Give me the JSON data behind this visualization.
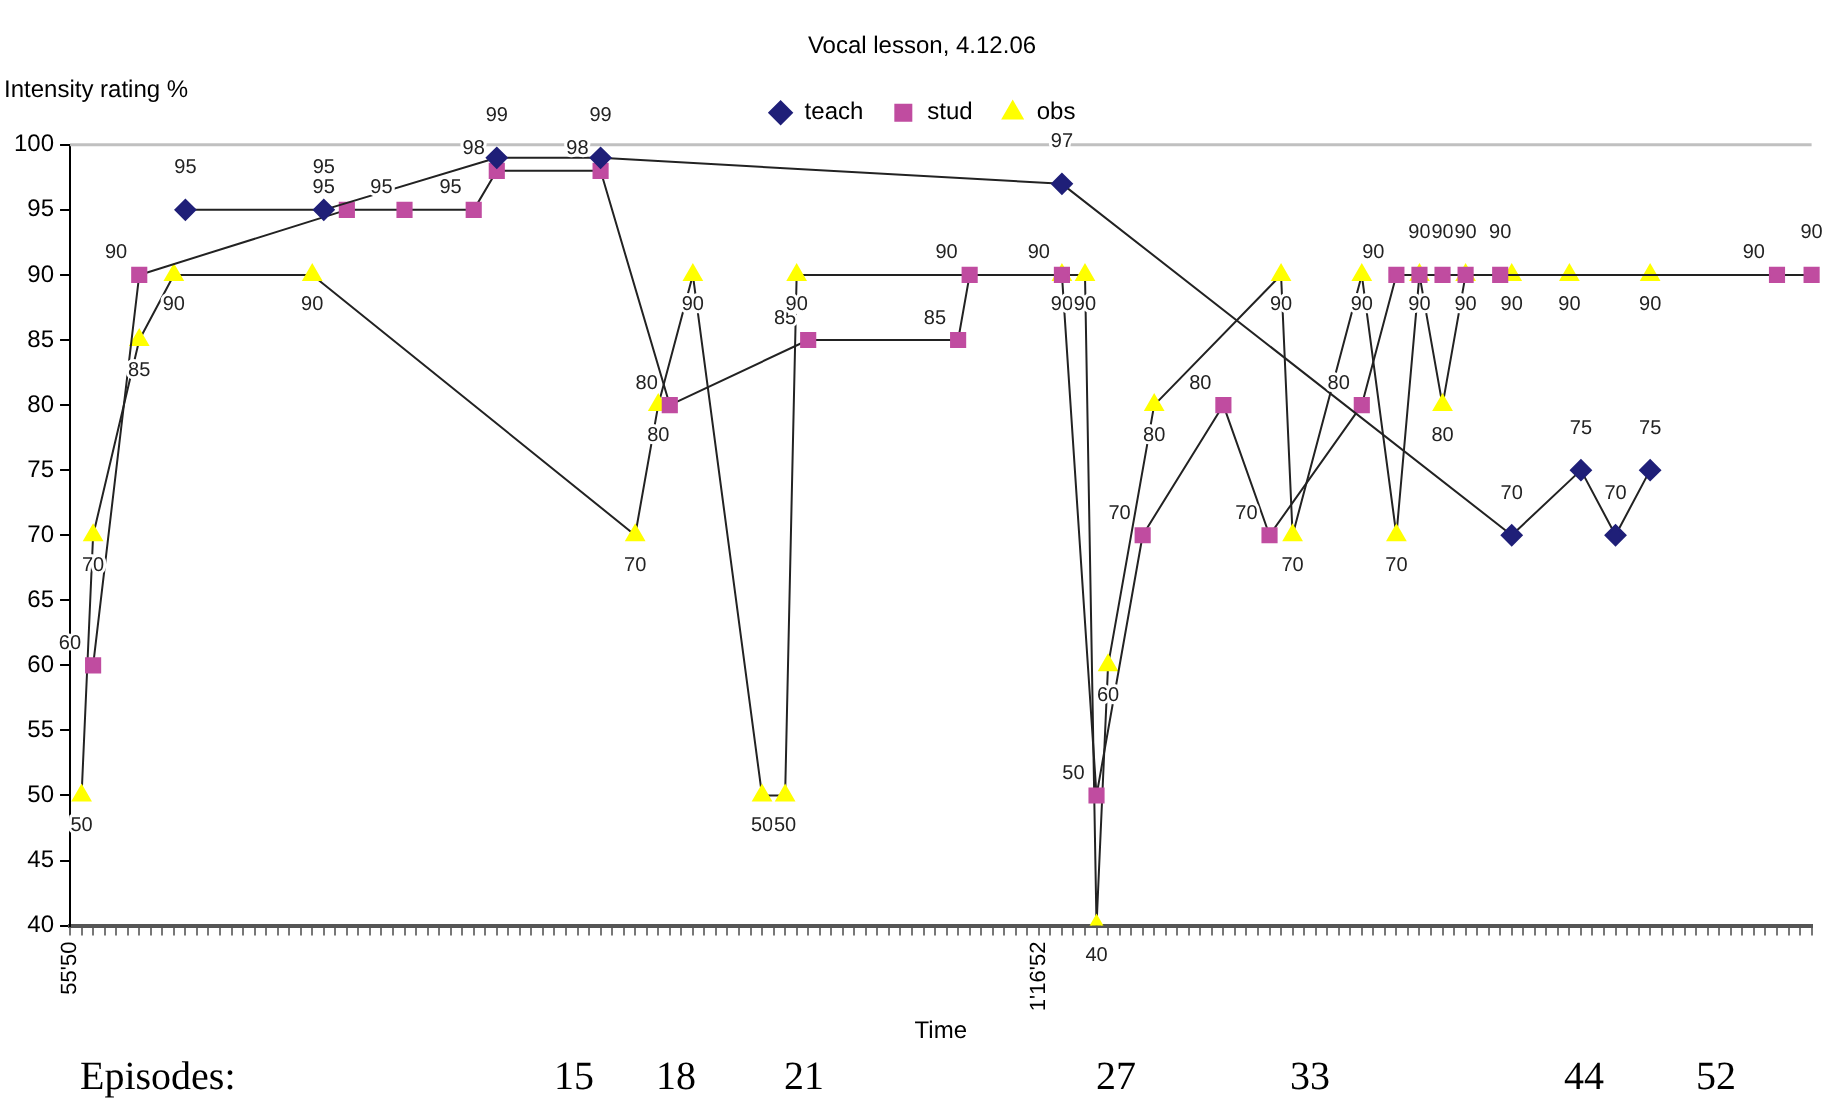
{
  "chart_data": {
    "type": "line",
    "title": "Vocal lesson, 4.12.06",
    "xlabel": "Time",
    "ylabel": "Intensity rating %",
    "categories": [
      "55'50",
      null,
      null,
      null,
      null,
      null,
      null,
      null,
      null,
      null,
      null,
      null,
      null,
      null,
      null,
      null,
      null,
      null,
      null,
      null,
      null,
      null,
      null,
      null,
      null,
      null,
      null,
      null,
      null,
      null,
      null,
      null,
      null,
      null,
      null,
      null,
      null,
      null,
      null,
      null,
      null,
      null,
      null,
      null,
      null,
      null,
      null,
      null,
      null,
      null,
      null,
      null,
      null,
      null,
      null,
      null,
      null,
      null,
      null,
      null,
      null,
      null,
      null,
      null,
      null,
      null,
      null,
      null,
      null,
      null,
      null,
      null,
      null,
      null,
      null,
      null,
      null,
      null,
      null,
      null,
      null,
      null,
      null,
      null,
      "1'16'52",
      null,
      null,
      null,
      null,
      null,
      null,
      null,
      null,
      null,
      null,
      null,
      null,
      null,
      null,
      null,
      null,
      null,
      null,
      null,
      null,
      null,
      null,
      null,
      null,
      null,
      null,
      null,
      null,
      null,
      null,
      null,
      null,
      null,
      null,
      null,
      null,
      null,
      null,
      null,
      null,
      null,
      null,
      null,
      null,
      null,
      null,
      null,
      null,
      null,
      null,
      null,
      null,
      null,
      null,
      null,
      null,
      null,
      null,
      null,
      null,
      null,
      null,
      null,
      null,
      null,
      null,
      null
    ],
    "ylim": [
      40,
      100
    ],
    "yticks": [
      40,
      45,
      50,
      55,
      60,
      65,
      70,
      75,
      80,
      85,
      90,
      95,
      100
    ],
    "grid": false,
    "legend": "top",
    "data_labels": true,
    "line_style": "solid",
    "series": [
      {
        "name": "teach",
        "color": "#1f1f78",
        "marker": "diamond",
        "values": [
          null,
          null,
          null,
          null,
          null,
          null,
          null,
          null,
          null,
          null,
          95,
          null,
          null,
          null,
          null,
          null,
          null,
          null,
          null,
          null,
          null,
          null,
          95,
          null,
          null,
          null,
          null,
          null,
          null,
          null,
          null,
          null,
          null,
          null,
          null,
          null,
          null,
          99,
          null,
          null,
          null,
          null,
          null,
          null,
          null,
          null,
          99,
          null,
          null,
          null,
          null,
          null,
          null,
          null,
          null,
          null,
          null,
          null,
          null,
          null,
          null,
          null,
          null,
          null,
          null,
          null,
          null,
          null,
          null,
          null,
          null,
          null,
          null,
          null,
          null,
          null,
          null,
          null,
          null,
          null,
          null,
          null,
          null,
          null,
          null,
          null,
          97,
          null,
          null,
          null,
          null,
          null,
          null,
          null,
          null,
          null,
          null,
          null,
          null,
          null,
          null,
          null,
          null,
          null,
          null,
          null,
          null,
          null,
          null,
          null,
          null,
          null,
          null,
          null,
          null,
          null,
          null,
          null,
          null,
          null,
          null,
          null,
          null,
          null,
          null,
          70,
          null,
          null,
          null,
          null,
          null,
          75,
          null,
          null,
          70,
          null,
          null,
          75,
          null,
          null,
          null,
          null,
          null,
          null,
          null,
          null,
          null,
          null,
          null,
          null,
          null,
          null
        ]
      },
      {
        "name": "stud",
        "color": "#c04ca0",
        "marker": "square",
        "values": [
          null,
          null,
          60,
          null,
          null,
          null,
          90,
          null,
          null,
          null,
          null,
          null,
          null,
          null,
          null,
          null,
          null,
          null,
          null,
          null,
          null,
          null,
          null,
          null,
          95,
          null,
          null,
          null,
          null,
          95,
          null,
          null,
          null,
          null,
          null,
          95,
          null,
          98,
          null,
          null,
          null,
          null,
          null,
          null,
          null,
          null,
          98,
          null,
          null,
          null,
          null,
          null,
          80,
          null,
          null,
          null,
          null,
          null,
          null,
          null,
          null,
          null,
          null,
          null,
          85,
          null,
          null,
          null,
          null,
          null,
          null,
          null,
          null,
          null,
          null,
          null,
          null,
          85,
          90,
          null,
          null,
          null,
          null,
          null,
          null,
          null,
          90,
          null,
          null,
          50,
          null,
          null,
          null,
          70,
          null,
          null,
          null,
          null,
          null,
          null,
          80,
          null,
          null,
          null,
          70,
          null,
          null,
          null,
          null,
          null,
          null,
          null,
          80,
          null,
          null,
          90,
          null,
          90,
          null,
          90,
          null,
          90,
          null,
          null,
          90,
          null,
          null,
          null,
          null,
          null,
          null,
          null,
          null,
          null,
          null,
          null,
          null,
          null,
          null,
          null,
          null,
          null,
          null,
          null,
          null,
          null,
          null,
          null,
          90,
          null,
          null,
          90
        ]
      },
      {
        "name": "obs",
        "color": "#ffff00",
        "marker": "triangle",
        "values": [
          null,
          50,
          70,
          null,
          null,
          null,
          85,
          null,
          null,
          90,
          null,
          null,
          null,
          null,
          null,
          null,
          null,
          null,
          null,
          null,
          null,
          90,
          null,
          null,
          null,
          null,
          null,
          null,
          null,
          null,
          null,
          null,
          null,
          null,
          null,
          null,
          null,
          null,
          null,
          null,
          null,
          null,
          null,
          null,
          null,
          null,
          null,
          null,
          null,
          70,
          null,
          80,
          null,
          null,
          90,
          null,
          null,
          null,
          null,
          null,
          50,
          null,
          50,
          90,
          null,
          null,
          null,
          null,
          null,
          null,
          null,
          null,
          null,
          null,
          null,
          null,
          null,
          null,
          null,
          null,
          null,
          null,
          null,
          null,
          null,
          null,
          90,
          null,
          90,
          40,
          60,
          null,
          null,
          null,
          80,
          null,
          null,
          null,
          null,
          null,
          null,
          null,
          null,
          null,
          null,
          90,
          70,
          null,
          null,
          null,
          null,
          null,
          90,
          null,
          null,
          70,
          null,
          90,
          null,
          80,
          null,
          90,
          null,
          null,
          null,
          90,
          null,
          null,
          null,
          null,
          90,
          null,
          null,
          null,
          null,
          null,
          null,
          90,
          null,
          null,
          null,
          null,
          null,
          null,
          null,
          null,
          null,
          null,
          null,
          null,
          null,
          null
        ]
      }
    ],
    "annotations": [
      "Episodes:",
      "15",
      "18",
      "21",
      "27",
      "33",
      "44",
      "52"
    ]
  }
}
